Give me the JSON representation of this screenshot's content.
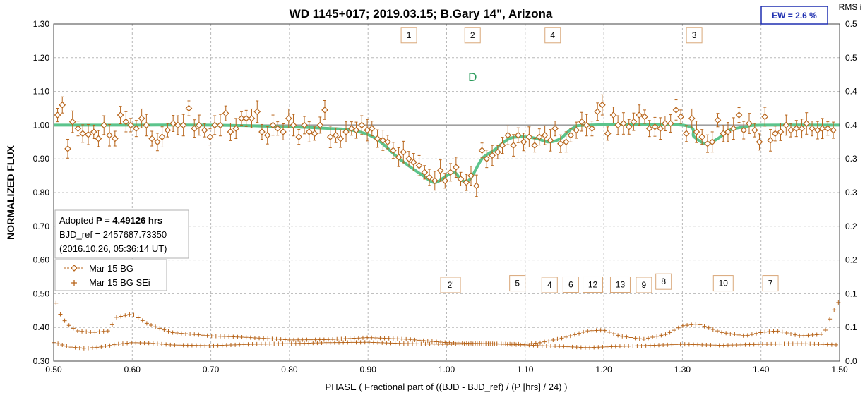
{
  "chart_data": {
    "type": "scatter",
    "title": "WD 1145+017; 2019.03.15; B.Gary 14\",  Arizona",
    "xlabel": "PHASE ( Fractional part of ((BJD - BJD_ref) / (P [hrs] / 24) )",
    "ylabel": "NORMALIZED FLUX",
    "y2label": "RMS i",
    "xlim": [
      0.5,
      1.5
    ],
    "ylim": [
      0.3,
      1.3
    ],
    "y2lim": [
      0.0,
      0.5
    ],
    "x_ticks": [
      "0.50",
      "0.60",
      "0.70",
      "0.80",
      "0.90",
      "1.00",
      "1.10",
      "1.20",
      "1.30",
      "1.40",
      "1.50"
    ],
    "y_ticks": [
      "0.30",
      "0.40",
      "0.50",
      "0.60",
      "0.70",
      "0.80",
      "0.90",
      "1.00",
      "1.10",
      "1.20",
      "1.30"
    ],
    "y2_ticks": [
      "0.0",
      "0.1",
      "0.1",
      "0.2",
      "0.2",
      "0.3",
      "0.3",
      "0.4",
      "0.4",
      "0.5",
      "0.5"
    ],
    "grid": true,
    "colors": {
      "data": "#b8651b",
      "model": "#5cc48c",
      "baseline": "#a0a0a0",
      "grid": "#b8b8b8",
      "ew": "#1f2fb0"
    },
    "ew_label": "EW =  2.6 %",
    "info_box": {
      "line1_prefix": "Adopted ",
      "line1_bold": "P = 4.49126 hrs",
      "line2": "BJD_ref = 2457687.73350",
      "line3": "(2016.10.26, 05:36:14 UT)"
    },
    "legend_position": "left-lower",
    "series": [
      {
        "name": "Mar 15 BG",
        "marker": "diamond"
      },
      {
        "name": "Mar 15 BG SEi",
        "marker": "plus"
      }
    ],
    "annotations": [
      {
        "text": "1",
        "x": 0.952,
        "y": 1.267
      },
      {
        "text": "2",
        "x": 1.033,
        "y": 1.267
      },
      {
        "text": "4",
        "x": 1.135,
        "y": 1.267
      },
      {
        "text": "3",
        "x": 1.315,
        "y": 1.267
      },
      {
        "text": "D",
        "x": 1.033,
        "y": 1.143
      },
      {
        "text": "2'",
        "x": 1.005,
        "y": 0.526
      },
      {
        "text": "5",
        "x": 1.09,
        "y": 0.531
      },
      {
        "text": "4",
        "x": 1.131,
        "y": 0.526
      },
      {
        "text": "6",
        "x": 1.158,
        "y": 0.527
      },
      {
        "text": "12",
        "x": 1.186,
        "y": 0.527
      },
      {
        "text": "13",
        "x": 1.221,
        "y": 0.527
      },
      {
        "text": "9",
        "x": 1.251,
        "y": 0.526
      },
      {
        "text": "8",
        "x": 1.276,
        "y": 0.536
      },
      {
        "text": "10",
        "x": 1.352,
        "y": 0.531
      },
      {
        "text": "7",
        "x": 1.412,
        "y": 0.531
      }
    ],
    "flux_points": [
      [
        0.505,
        1.03
      ],
      [
        0.511,
        1.06
      ],
      [
        0.518,
        0.93
      ],
      [
        0.524,
        1.01
      ],
      [
        0.531,
        0.99
      ],
      [
        0.537,
        0.975
      ],
      [
        0.544,
        0.972
      ],
      [
        0.551,
        0.98
      ],
      [
        0.557,
        0.96
      ],
      [
        0.564,
        1.0
      ],
      [
        0.571,
        0.97
      ],
      [
        0.578,
        0.96
      ],
      [
        0.585,
        1.03
      ],
      [
        0.592,
        1.01
      ],
      [
        0.598,
        1.0
      ],
      [
        0.605,
        0.99
      ],
      [
        0.612,
        1.02
      ],
      [
        0.618,
        1.0
      ],
      [
        0.625,
        0.96
      ],
      [
        0.632,
        0.95
      ],
      [
        0.638,
        0.965
      ],
      [
        0.645,
        0.985
      ],
      [
        0.652,
        1.005
      ],
      [
        0.658,
        1.0
      ],
      [
        0.665,
        1.0
      ],
      [
        0.672,
        1.05
      ],
      [
        0.679,
        0.99
      ],
      [
        0.685,
        1.0
      ],
      [
        0.692,
        0.985
      ],
      [
        0.699,
        0.965
      ],
      [
        0.705,
        1.0
      ],
      [
        0.712,
        1.0
      ],
      [
        0.719,
        1.035
      ],
      [
        0.725,
        0.98
      ],
      [
        0.732,
        0.99
      ],
      [
        0.739,
        1.02
      ],
      [
        0.745,
        1.02
      ],
      [
        0.752,
        1.02
      ],
      [
        0.759,
        1.04
      ],
      [
        0.765,
        0.98
      ],
      [
        0.772,
        0.97
      ],
      [
        0.779,
        1.0
      ],
      [
        0.785,
        0.99
      ],
      [
        0.792,
        0.98
      ],
      [
        0.799,
        1.02
      ],
      [
        0.805,
        1.0
      ],
      [
        0.812,
        0.965
      ],
      [
        0.819,
        1.0
      ],
      [
        0.825,
        0.98
      ],
      [
        0.832,
        0.975
      ],
      [
        0.839,
        1.0
      ],
      [
        0.845,
        1.045
      ],
      [
        0.852,
        0.965
      ],
      [
        0.859,
        0.97
      ],
      [
        0.865,
        0.96
      ],
      [
        0.872,
        0.98
      ],
      [
        0.879,
        0.99
      ],
      [
        0.885,
        0.985
      ],
      [
        0.892,
        1.0
      ],
      [
        0.899,
        0.985
      ],
      [
        0.905,
        0.99
      ],
      [
        0.912,
        0.96
      ],
      [
        0.919,
        0.955
      ],
      [
        0.925,
        0.95
      ],
      [
        0.932,
        0.925
      ],
      [
        0.939,
        0.905
      ],
      [
        0.945,
        0.92
      ],
      [
        0.952,
        0.9
      ],
      [
        0.958,
        0.89
      ],
      [
        0.965,
        0.88
      ],
      [
        0.972,
        0.86
      ],
      [
        0.978,
        0.845
      ],
      [
        0.985,
        0.835
      ],
      [
        0.992,
        0.865
      ],
      [
        0.998,
        0.835
      ],
      [
        1.005,
        0.86
      ],
      [
        1.012,
        0.875
      ],
      [
        1.018,
        0.84
      ],
      [
        1.025,
        0.83
      ],
      [
        1.031,
        0.85
      ],
      [
        1.038,
        0.82
      ],
      [
        1.045,
        0.925
      ],
      [
        1.051,
        0.9
      ],
      [
        1.058,
        0.91
      ],
      [
        1.065,
        0.92
      ],
      [
        1.071,
        0.94
      ],
      [
        1.078,
        0.97
      ],
      [
        1.085,
        0.94
      ],
      [
        1.091,
        0.97
      ],
      [
        1.098,
        0.95
      ],
      [
        1.105,
        0.965
      ],
      [
        1.112,
        0.94
      ],
      [
        1.118,
        0.965
      ],
      [
        1.125,
        0.97
      ],
      [
        1.132,
        0.955
      ],
      [
        1.138,
        0.99
      ],
      [
        1.145,
        0.945
      ],
      [
        1.152,
        0.95
      ],
      [
        1.158,
        0.97
      ],
      [
        1.165,
        0.985
      ],
      [
        1.172,
        1.01
      ],
      [
        1.178,
        1.0
      ],
      [
        1.185,
        0.99
      ],
      [
        1.192,
        1.04
      ],
      [
        1.198,
        1.06
      ],
      [
        1.205,
        0.975
      ],
      [
        1.212,
        1.03
      ],
      [
        1.218,
        1.0
      ],
      [
        1.225,
        1.005
      ],
      [
        1.232,
        0.995
      ],
      [
        1.238,
        1.01
      ],
      [
        1.245,
        1.03
      ],
      [
        1.252,
        1.025
      ],
      [
        1.258,
        0.99
      ],
      [
        1.265,
        0.995
      ],
      [
        1.272,
        0.99
      ],
      [
        1.278,
        1.005
      ],
      [
        1.285,
        1.005
      ],
      [
        1.292,
        1.045
      ],
      [
        1.298,
        1.025
      ],
      [
        1.305,
        0.975
      ],
      [
        1.312,
        1.02
      ],
      [
        1.318,
        0.98
      ],
      [
        1.325,
        0.965
      ],
      [
        1.332,
        0.945
      ],
      [
        1.338,
        0.95
      ],
      [
        1.345,
        1.015
      ],
      [
        1.352,
        0.975
      ],
      [
        1.358,
        0.98
      ],
      [
        1.365,
        0.99
      ],
      [
        1.372,
        1.03
      ],
      [
        1.378,
        0.985
      ],
      [
        1.385,
        1.005
      ],
      [
        1.392,
        0.985
      ],
      [
        1.398,
        0.95
      ],
      [
        1.405,
        1.025
      ],
      [
        1.412,
        0.955
      ],
      [
        1.418,
        0.975
      ],
      [
        1.425,
        0.98
      ],
      [
        1.432,
        1.0
      ],
      [
        1.438,
        0.985
      ],
      [
        1.445,
        0.99
      ],
      [
        1.452,
        0.99
      ],
      [
        1.458,
        1.005
      ],
      [
        1.465,
        0.99
      ],
      [
        1.472,
        0.985
      ],
      [
        1.478,
        0.99
      ],
      [
        1.485,
        0.99
      ],
      [
        1.492,
        0.985
      ]
    ],
    "model_curve": [
      [
        0.5,
        1.0
      ],
      [
        0.6,
        1.0
      ],
      [
        0.7,
        1.0
      ],
      [
        0.8,
        0.995
      ],
      [
        0.85,
        0.99
      ],
      [
        0.88,
        0.985
      ],
      [
        0.91,
        0.96
      ],
      [
        0.94,
        0.9
      ],
      [
        0.97,
        0.85
      ],
      [
        0.985,
        0.83
      ],
      [
        1.0,
        0.85
      ],
      [
        1.01,
        0.86
      ],
      [
        1.02,
        0.835
      ],
      [
        1.03,
        0.84
      ],
      [
        1.045,
        0.9
      ],
      [
        1.06,
        0.925
      ],
      [
        1.08,
        0.96
      ],
      [
        1.1,
        0.965
      ],
      [
        1.115,
        0.96
      ],
      [
        1.13,
        0.95
      ],
      [
        1.145,
        0.96
      ],
      [
        1.16,
        0.99
      ],
      [
        1.18,
        1.0
      ],
      [
        1.3,
        1.0
      ],
      [
        1.315,
        0.965
      ],
      [
        1.33,
        0.945
      ],
      [
        1.345,
        0.96
      ],
      [
        1.36,
        0.985
      ],
      [
        1.38,
        0.995
      ],
      [
        1.4,
        1.0
      ],
      [
        1.5,
        1.0
      ]
    ],
    "rms_series_a": [
      [
        0.5,
        0.355
      ],
      [
        0.505,
        0.352
      ],
      [
        0.52,
        0.342
      ],
      [
        0.54,
        0.338
      ],
      [
        0.56,
        0.342
      ],
      [
        0.58,
        0.35
      ],
      [
        0.6,
        0.355
      ],
      [
        0.62,
        0.354
      ],
      [
        0.65,
        0.348
      ],
      [
        0.7,
        0.346
      ],
      [
        0.75,
        0.35
      ],
      [
        0.8,
        0.352
      ],
      [
        0.85,
        0.355
      ],
      [
        0.9,
        0.356
      ],
      [
        0.95,
        0.352
      ],
      [
        1.0,
        0.35
      ],
      [
        1.05,
        0.352
      ],
      [
        1.1,
        0.348
      ],
      [
        1.15,
        0.343
      ],
      [
        1.18,
        0.34
      ],
      [
        1.2,
        0.342
      ],
      [
        1.25,
        0.346
      ],
      [
        1.3,
        0.35
      ],
      [
        1.35,
        0.347
      ],
      [
        1.4,
        0.35
      ],
      [
        1.45,
        0.352
      ],
      [
        1.5,
        0.348
      ]
    ],
    "rms_series_b": [
      [
        0.5,
        0.49
      ],
      [
        0.505,
        0.46
      ],
      [
        0.51,
        0.43
      ],
      [
        0.52,
        0.405
      ],
      [
        0.53,
        0.39
      ],
      [
        0.55,
        0.385
      ],
      [
        0.57,
        0.39
      ],
      [
        0.58,
        0.43
      ],
      [
        0.6,
        0.44
      ],
      [
        0.62,
        0.41
      ],
      [
        0.65,
        0.385
      ],
      [
        0.7,
        0.375
      ],
      [
        0.75,
        0.37
      ],
      [
        0.8,
        0.363
      ],
      [
        0.85,
        0.364
      ],
      [
        0.9,
        0.37
      ],
      [
        0.95,
        0.365
      ],
      [
        1.0,
        0.355
      ],
      [
        1.05,
        0.352
      ],
      [
        1.1,
        0.35
      ],
      [
        1.12,
        0.355
      ],
      [
        1.15,
        0.37
      ],
      [
        1.18,
        0.39
      ],
      [
        1.2,
        0.392
      ],
      [
        1.22,
        0.375
      ],
      [
        1.25,
        0.365
      ],
      [
        1.28,
        0.38
      ],
      [
        1.3,
        0.405
      ],
      [
        1.32,
        0.41
      ],
      [
        1.35,
        0.385
      ],
      [
        1.38,
        0.375
      ],
      [
        1.4,
        0.385
      ],
      [
        1.42,
        0.39
      ],
      [
        1.45,
        0.375
      ],
      [
        1.48,
        0.38
      ],
      [
        1.49,
        0.44
      ],
      [
        1.5,
        0.48
      ]
    ]
  }
}
